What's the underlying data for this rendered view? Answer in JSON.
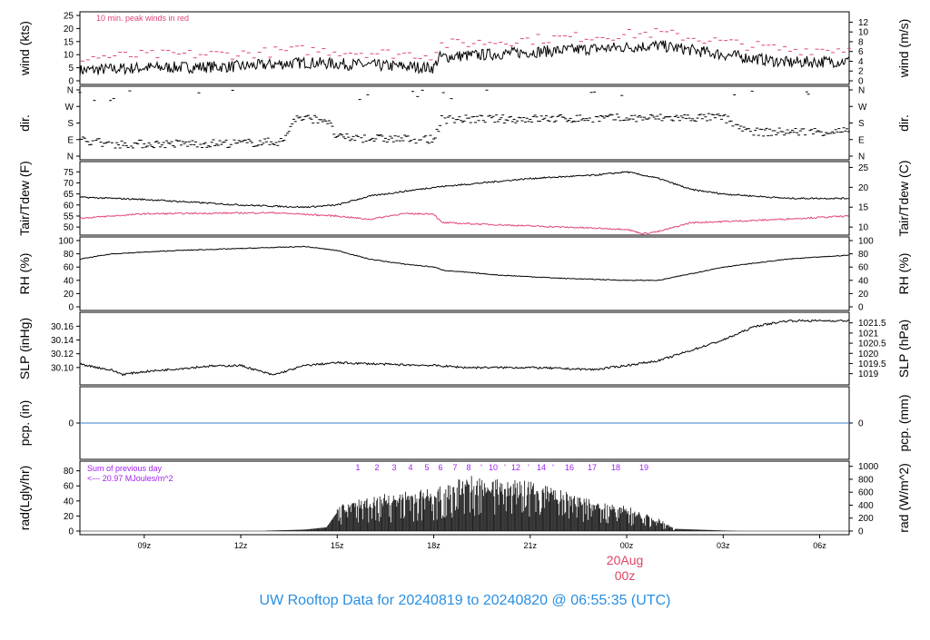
{
  "title": "UW Rooftop Data for 20240819  to  20240820 @ 06:55:35  (UTC)",
  "colors": {
    "title": "#2a8fe0",
    "peak": "#e0457a",
    "dew": "#e0457a",
    "pcp": "#3a7fd0",
    "annot": "#a020f0",
    "date": "#dd4466",
    "line": "#000000"
  },
  "chart_data": [
    {
      "type": "line",
      "panel": "wind",
      "ylabel": "wind (kts)",
      "ylabel_right": "wind (m/s)",
      "ylim": [
        0,
        25
      ],
      "yticks": [
        0,
        5,
        10,
        15,
        20,
        25
      ],
      "yticks_right": [
        0,
        2,
        4,
        6,
        8,
        10,
        12
      ],
      "annotation": "10 min. peak winds in red",
      "series": [
        {
          "name": "wind",
          "points": [
            [
              "08-19 07:00",
              4
            ],
            [
              "08-19 09:00",
              5
            ],
            [
              "08-19 12:00",
              5.5
            ],
            [
              "08-19 14:00",
              7
            ],
            [
              "08-19 16:00",
              6
            ],
            [
              "08-19 18:00",
              5
            ],
            [
              "08-19 18:10",
              9
            ],
            [
              "08-19 21:00",
              11
            ],
            [
              "08-20 01:00",
              13.5
            ],
            [
              "08-20 03:00",
              10
            ],
            [
              "08-20 05:00",
              7
            ],
            [
              "08-20 06:55",
              7.5
            ]
          ]
        },
        {
          "name": "10 min. peak winds",
          "offset": 4
        }
      ]
    },
    {
      "type": "scatter",
      "panel": "dir",
      "ylabel": "dir.",
      "ylim": [
        0,
        360
      ],
      "yticks": [
        "N",
        "E",
        "S",
        "W",
        "N"
      ],
      "points": [
        [
          "08-19 07:00",
          90
        ],
        [
          "08-19 08:00",
          65
        ],
        [
          "08-19 12:00",
          70
        ],
        [
          "08-19 13:20",
          80
        ],
        [
          "08-19 13:40",
          205
        ],
        [
          "08-19 14:40",
          200
        ],
        [
          "08-19 15:00",
          100
        ],
        [
          "08-19 18:00",
          90
        ],
        [
          "08-19 18:15",
          200
        ],
        [
          "08-19 23:00",
          205
        ],
        [
          "08-20 03:00",
          210
        ],
        [
          "08-20 03:50",
          130
        ],
        [
          "08-20 06:55",
          135
        ]
      ]
    },
    {
      "type": "line",
      "panel": "temp",
      "ylabel": "Tair/Tdew (F)",
      "ylabel_right": "Tair/Tdew (C)",
      "ylim": [
        50,
        75
      ],
      "yticks": [
        50,
        55,
        60,
        65,
        70,
        75
      ],
      "yticks_right": [
        10,
        15,
        20,
        25
      ],
      "series": [
        {
          "name": "Tair",
          "points": [
            [
              "08-19 07:00",
              63.5
            ],
            [
              "08-19 09:00",
              62.5
            ],
            [
              "08-19 12:00",
              60
            ],
            [
              "08-19 14:00",
              59
            ],
            [
              "08-19 15:00",
              60
            ],
            [
              "08-19 16:00",
              64
            ],
            [
              "08-19 18:00",
              68
            ],
            [
              "08-19 21:00",
              72
            ],
            [
              "08-19 23:00",
              73.5
            ],
            [
              "08-20 00:00",
              75
            ],
            [
              "08-20 01:00",
              72
            ],
            [
              "08-20 02:00",
              67
            ],
            [
              "08-20 03:00",
              65
            ],
            [
              "08-20 05:00",
              63
            ],
            [
              "08-20 06:55",
              63
            ]
          ]
        },
        {
          "name": "Tdew",
          "points": [
            [
              "08-19 07:00",
              54
            ],
            [
              "08-19 09:00",
              56
            ],
            [
              "08-19 13:00",
              56.5
            ],
            [
              "08-19 15:00",
              55
            ],
            [
              "08-19 16:00",
              53.5
            ],
            [
              "08-19 17:00",
              56
            ],
            [
              "08-19 18:00",
              56
            ],
            [
              "08-19 18:15",
              52
            ],
            [
              "08-19 21:00",
              50.5
            ],
            [
              "08-20 00:00",
              49
            ],
            [
              "08-20 00:30",
              47
            ],
            [
              "08-20 01:00",
              48
            ],
            [
              "08-20 02:00",
              52
            ],
            [
              "08-20 04:00",
              53
            ],
            [
              "08-20 06:55",
              55
            ]
          ]
        }
      ]
    },
    {
      "type": "line",
      "panel": "rh",
      "ylabel": "RH (%)",
      "ylabel_right": "RH (%)",
      "ylim": [
        0,
        100
      ],
      "yticks": [
        0,
        20,
        40,
        60,
        80,
        100
      ],
      "points": [
        [
          "08-19 07:00",
          72
        ],
        [
          "08-19 08:00",
          80
        ],
        [
          "08-19 10:00",
          85
        ],
        [
          "08-19 14:00",
          91
        ],
        [
          "08-19 15:00",
          85
        ],
        [
          "08-19 16:00",
          72
        ],
        [
          "08-19 17:00",
          65
        ],
        [
          "08-19 18:00",
          60
        ],
        [
          "08-19 18:20",
          55
        ],
        [
          "08-19 20:00",
          48
        ],
        [
          "08-19 22:00",
          43
        ],
        [
          "08-20 00:00",
          40
        ],
        [
          "08-20 01:00",
          40
        ],
        [
          "08-20 02:00",
          50
        ],
        [
          "08-20 03:00",
          60
        ],
        [
          "08-20 05:00",
          72
        ],
        [
          "08-20 06:55",
          78
        ]
      ]
    },
    {
      "type": "line",
      "panel": "slp",
      "ylabel": "SLP (inHg)",
      "ylabel_right": "SLP (hPa)",
      "ylim": [
        30.08,
        30.17
      ],
      "yticks": [
        "30.10",
        "30.12",
        "30.14",
        "30.16"
      ],
      "yticks_right": [
        "1019",
        "1019.5",
        "1020",
        "1020.5",
        "1021",
        "1021.5"
      ],
      "points": [
        [
          "08-19 07:00",
          30.105
        ],
        [
          "08-19 08:00",
          30.096
        ],
        [
          "08-19 08:20",
          30.09
        ],
        [
          "08-19 09:00",
          30.094
        ],
        [
          "08-19 10:00",
          30.098
        ],
        [
          "08-19 11:00",
          30.102
        ],
        [
          "08-19 12:00",
          30.103
        ],
        [
          "08-19 13:00",
          30.089
        ],
        [
          "08-19 14:00",
          30.103
        ],
        [
          "08-19 15:00",
          30.107
        ],
        [
          "08-19 17:00",
          30.104
        ],
        [
          "08-19 18:00",
          30.103
        ],
        [
          "08-19 19:00",
          30.1
        ],
        [
          "08-19 21:00",
          30.1
        ],
        [
          "08-19 23:00",
          30.097
        ],
        [
          "08-20 00:00",
          30.103
        ],
        [
          "08-20 01:00",
          30.11
        ],
        [
          "08-20 02:00",
          30.125
        ],
        [
          "08-20 03:00",
          30.14
        ],
        [
          "08-20 04:00",
          30.16
        ],
        [
          "08-20 05:00",
          30.168
        ],
        [
          "08-20 06:55",
          30.168
        ]
      ]
    },
    {
      "type": "line",
      "panel": "pcp",
      "ylabel": "pcp. (in)",
      "ylabel_right": "pcp. (mm)",
      "yticks": [
        0
      ],
      "yticks_right": [
        0
      ],
      "value": 0
    },
    {
      "type": "bar",
      "panel": "rad",
      "ylabel": "rad(Lgly/hr)",
      "ylabel_right": "rad (W/m^2)",
      "ylim": [
        0,
        85
      ],
      "yticks": [
        0,
        20,
        40,
        60,
        80
      ],
      "yticks_right": [
        0,
        200,
        400,
        600,
        800,
        1000
      ],
      "annotation_1": "Sum of previous day",
      "annotation_2": "<--- 20.97 MJoules/m^2",
      "hour_labels": [
        "1",
        "2",
        "3",
        "4",
        "5",
        "6",
        "7",
        "8",
        "'",
        "10",
        "'",
        "12",
        "'",
        "14",
        "'",
        "16",
        "17",
        "18",
        "19"
      ],
      "points": [
        [
          "08-19 12:50",
          0.5
        ],
        [
          "08-19 14:00",
          2
        ],
        [
          "08-19 14:40",
          5
        ],
        [
          "08-19 15:00",
          25
        ],
        [
          "08-19 16:00",
          35
        ],
        [
          "08-19 18:00",
          42
        ],
        [
          "08-19 19:00",
          55
        ],
        [
          "08-19 21:00",
          50
        ],
        [
          "08-19 23:00",
          30
        ],
        [
          "08-20 00:00",
          25
        ],
        [
          "08-20 01:00",
          12
        ],
        [
          "08-20 01:30",
          3
        ],
        [
          "08-20 03:30",
          0
        ]
      ]
    }
  ],
  "xaxis": {
    "ticks": [
      "09z",
      "12z",
      "15z",
      "18z",
      "21z",
      "00z",
      "03z",
      "06z"
    ],
    "date_label": "20Aug",
    "date_sub": "00z"
  }
}
